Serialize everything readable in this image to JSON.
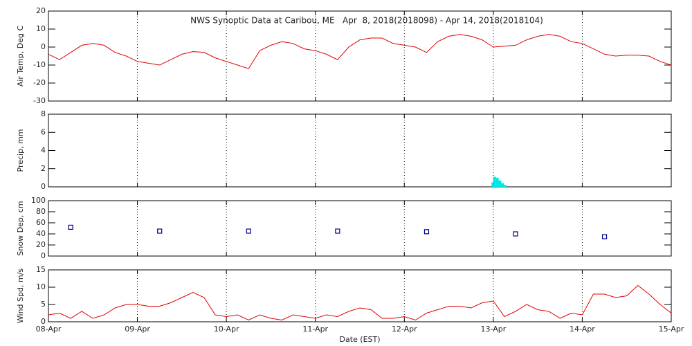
{
  "chart_data": [
    {
      "type": "line",
      "title": "NWS Synoptic Data at Caribou, ME   Apr  8, 2018(2018098) - Apr 14, 2018(2018104)",
      "ylabel": "Air Temp, Deg C",
      "color": "#e00000",
      "x": [
        0,
        0.125,
        0.25,
        0.375,
        0.5,
        0.625,
        0.75,
        0.875,
        1,
        1.125,
        1.25,
        1.375,
        1.5,
        1.625,
        1.75,
        1.875,
        2,
        2.125,
        2.25,
        2.375,
        2.5,
        2.625,
        2.75,
        2.875,
        3,
        3.125,
        3.25,
        3.375,
        3.5,
        3.625,
        3.75,
        3.875,
        4,
        4.125,
        4.25,
        4.375,
        4.5,
        4.625,
        4.75,
        4.875,
        5,
        5.125,
        5.25,
        5.375,
        5.5,
        5.625,
        5.75,
        5.875,
        6,
        6.125,
        6.25,
        6.375,
        6.5,
        6.625,
        6.75,
        6.875,
        7
      ],
      "values": [
        -4,
        -7,
        -3,
        1,
        2,
        1,
        -3,
        -5,
        -8,
        -9,
        -10,
        -7,
        -4,
        -2.5,
        -3,
        -6,
        -8,
        -10,
        -12,
        -2,
        1,
        3,
        2,
        -1,
        -2,
        -4,
        -7,
        0,
        4,
        5,
        5,
        2,
        1,
        0,
        -3,
        3,
        6,
        7,
        6,
        4,
        0,
        0.5,
        1,
        4,
        6,
        7,
        6,
        3,
        2,
        -1,
        -4,
        -5,
        -4.5,
        -4.5,
        -5,
        -8,
        -10
      ],
      "xlim": [
        0,
        7
      ],
      "xticks": [
        0,
        1,
        2,
        3,
        4,
        5,
        6,
        7
      ],
      "ylim": [
        -30,
        20
      ],
      "yticks": [
        -30,
        -20,
        -10,
        0,
        10,
        20
      ],
      "grid": true
    },
    {
      "type": "bar",
      "ylabel": "Precip, mm",
      "color": "#00e5e5",
      "x": [
        4.98,
        5.0,
        5.03,
        5.06,
        5.09,
        5.12
      ],
      "values": [
        0.5,
        1.1,
        1.0,
        0.7,
        0.4,
        0.2
      ],
      "xlim": [
        0,
        7
      ],
      "xticks": [
        0,
        1,
        2,
        3,
        4,
        5,
        6,
        7
      ],
      "ylim": [
        0,
        8
      ],
      "yticks": [
        0,
        2,
        4,
        6,
        8
      ],
      "grid": true
    },
    {
      "type": "scatter",
      "ylabel": "Snow Dep, cm",
      "color": "#00008b",
      "x": [
        0.25,
        1.25,
        2.25,
        3.25,
        4.25,
        5.25,
        6.25
      ],
      "values": [
        52,
        45,
        45,
        45,
        44,
        40,
        35
      ],
      "xlim": [
        0,
        7
      ],
      "xticks": [
        0,
        1,
        2,
        3,
        4,
        5,
        6,
        7
      ],
      "ylim": [
        0,
        100
      ],
      "yticks": [
        0,
        20,
        40,
        60,
        80,
        100
      ],
      "grid": true
    },
    {
      "type": "line",
      "ylabel": "Wind Spd, m/s",
      "xlabel": "Date (EST)",
      "color": "#e00000",
      "x": [
        0,
        0.125,
        0.25,
        0.375,
        0.5,
        0.625,
        0.75,
        0.875,
        1,
        1.125,
        1.25,
        1.375,
        1.5,
        1.625,
        1.75,
        1.875,
        2,
        2.125,
        2.25,
        2.375,
        2.5,
        2.625,
        2.75,
        2.875,
        3,
        3.125,
        3.25,
        3.375,
        3.5,
        3.625,
        3.75,
        3.875,
        4,
        4.125,
        4.25,
        4.375,
        4.5,
        4.625,
        4.75,
        4.875,
        5,
        5.125,
        5.25,
        5.375,
        5.5,
        5.625,
        5.75,
        5.875,
        6,
        6.125,
        6.25,
        6.375,
        6.5,
        6.625,
        6.75,
        6.875,
        7
      ],
      "values": [
        2,
        2.5,
        1,
        3,
        1,
        2,
        4,
        5,
        5,
        4.5,
        4.5,
        5.5,
        7,
        8.5,
        7,
        2,
        1.5,
        2,
        0.5,
        2,
        1,
        0.5,
        2,
        1.5,
        1,
        2,
        1.5,
        3,
        4,
        3.5,
        1,
        1,
        1.5,
        0.5,
        2.5,
        3.5,
        4.5,
        4.5,
        4,
        5.5,
        6,
        1.5,
        3,
        5,
        3.5,
        3,
        1,
        2.5,
        2,
        8,
        8,
        7,
        7.5,
        10.5,
        8,
        5,
        2.5
      ],
      "xlim": [
        0,
        7
      ],
      "xticks": [
        {
          "value": 0,
          "label": "08-Apr"
        },
        {
          "value": 1,
          "label": "09-Apr"
        },
        {
          "value": 2,
          "label": "10-Apr"
        },
        {
          "value": 3,
          "label": "11-Apr"
        },
        {
          "value": 4,
          "label": "12-Apr"
        },
        {
          "value": 5,
          "label": "13-Apr"
        },
        {
          "value": 6,
          "label": "14-Apr"
        },
        {
          "value": 7,
          "label": "15-Apr"
        }
      ],
      "ylim": [
        0,
        15
      ],
      "yticks": [
        0,
        5,
        10,
        15
      ],
      "grid": true
    }
  ]
}
